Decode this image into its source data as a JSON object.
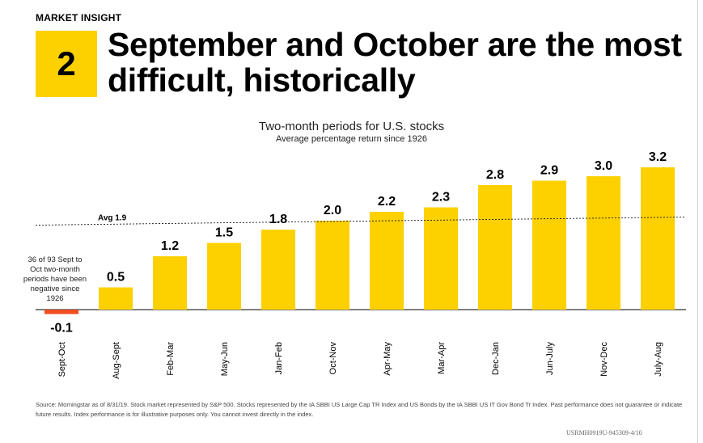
{
  "eyebrow": "MARKET INSIGHT",
  "number": "2",
  "headline": "September and October are the most difficult, historically",
  "callout": "36 of 93 Sept to Oct two-month periods have been negative since 1926",
  "source": "Source: Morningstar as of 8/31/19. Stock market represented by S&P 500. Stocks represented by the IA SBBI US Large Cap TR Index and US Bonds by the IA SBBI US IT Gov Bond Tr Index. Past performance does not guarantee or indicate future results. Index performance is for illustrative purposes only. You cannot invest directly in the index.",
  "code": "USRMH0919U-945309-4/10",
  "colors": {
    "accent": "#fdd000",
    "negative": "#f04e23"
  },
  "chart_data": {
    "type": "bar",
    "title": "Two-month periods for U.S. stocks",
    "subtitle": "Average percentage return since 1926",
    "categories": [
      "Sept-Oct",
      "Aug-Sept",
      "Feb-Mar",
      "May-Jun",
      "Jan-Feb",
      "Oct-Nov",
      "Apr-May",
      "Mar-Apr",
      "Dec-Jan",
      "Jun-July",
      "Nov-Dec",
      "July-Aug"
    ],
    "values": [
      -0.1,
      0.5,
      1.2,
      1.5,
      1.8,
      2.0,
      2.2,
      2.3,
      2.8,
      2.9,
      3.0,
      3.2
    ],
    "value_labels": [
      "-0.1",
      "0.5",
      "1.2",
      "1.5",
      "1.8",
      "2.0",
      "2.2",
      "2.3",
      "2.8",
      "2.9",
      "3.0",
      "3.2"
    ],
    "average": {
      "label": "Avg 1.9",
      "value": 1.9
    }
  }
}
